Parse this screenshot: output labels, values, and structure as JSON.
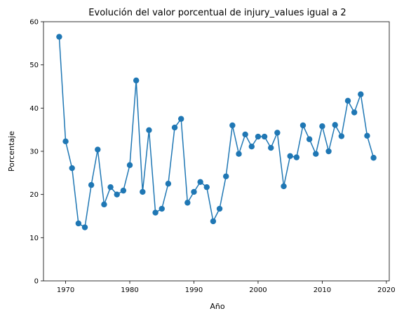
{
  "chart_data": {
    "type": "line",
    "title": "Evolución del valor porcentual de injury_values igual a 2",
    "xlabel": "Año",
    "ylabel": "Porcentaje",
    "xlim": [
      1966.55,
      2020.45
    ],
    "ylim": [
      0,
      60
    ],
    "xticks": [
      1970,
      1980,
      1990,
      2000,
      2010,
      2020
    ],
    "yticks": [
      0,
      10,
      20,
      30,
      40,
      50,
      60
    ],
    "grid": false,
    "legend": "none",
    "series_color": "#1f77b4",
    "marker": "circle",
    "x": [
      1969,
      1970,
      1971,
      1972,
      1973,
      1974,
      1975,
      1976,
      1977,
      1978,
      1979,
      1980,
      1981,
      1982,
      1983,
      1984,
      1985,
      1986,
      1987,
      1988,
      1989,
      1990,
      1991,
      1992,
      1993,
      1994,
      1995,
      1996,
      1997,
      1998,
      1999,
      2000,
      2001,
      2002,
      2003,
      2004,
      2005,
      2006,
      2007,
      2008,
      2009,
      2010,
      2011,
      2012,
      2013,
      2014,
      2015,
      2016,
      2017,
      2018
    ],
    "y": [
      56.5,
      32.3,
      26.1,
      13.3,
      12.4,
      22.2,
      30.4,
      17.7,
      21.7,
      20.0,
      20.9,
      26.8,
      46.4,
      20.6,
      34.9,
      15.8,
      16.7,
      22.5,
      35.5,
      37.5,
      18.1,
      20.6,
      22.9,
      21.7,
      13.8,
      16.7,
      24.2,
      36.0,
      29.4,
      33.9,
      31.1,
      33.4,
      33.4,
      30.8,
      34.3,
      21.9,
      28.9,
      28.6,
      36.0,
      32.8,
      29.4,
      35.8,
      30.0,
      36.1,
      33.5,
      41.7,
      39.0,
      43.2,
      33.6,
      28.5
    ]
  }
}
